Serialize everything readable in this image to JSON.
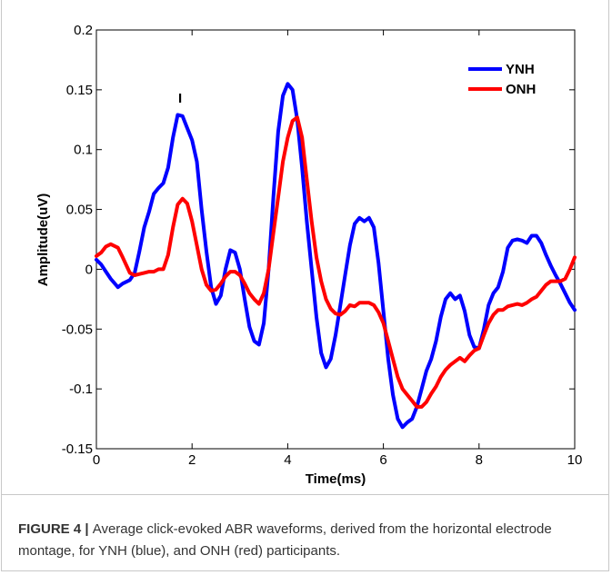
{
  "chart_data": {
    "type": "line",
    "title": "",
    "xlabel": "Time(ms)",
    "ylabel": "Amplitude(uV)",
    "xlim": [
      0,
      10
    ],
    "ylim": [
      -0.15,
      0.2
    ],
    "x_ticks": [
      0,
      2,
      4,
      6,
      8,
      10
    ],
    "x_tick_labels": [
      "0",
      "2",
      "4",
      "6",
      "8",
      "10"
    ],
    "y_ticks": [
      -0.15,
      -0.1,
      -0.05,
      0,
      0.05,
      0.1,
      0.15,
      0.2
    ],
    "y_tick_labels": [
      "-0.15",
      "-0.1",
      "-0.05",
      "0",
      "0.05",
      "0.1",
      "0.15",
      "0.2"
    ],
    "grid": false,
    "legend_position": "top-right",
    "annotations": [
      {
        "text": "I",
        "x": 1.75,
        "y": 0.143
      }
    ],
    "series": [
      {
        "name": "YNH",
        "color": "#0000ff",
        "points": [
          [
            0,
            0.008
          ],
          [
            0.1,
            0.004
          ],
          [
            0.2,
            -0.002
          ],
          [
            0.3,
            -0.008
          ],
          [
            0.45,
            -0.015
          ],
          [
            0.55,
            -0.012
          ],
          [
            0.7,
            -0.009
          ],
          [
            0.8,
            -0.003
          ],
          [
            0.9,
            0.015
          ],
          [
            1.0,
            0.035
          ],
          [
            1.1,
            0.048
          ],
          [
            1.2,
            0.063
          ],
          [
            1.3,
            0.068
          ],
          [
            1.4,
            0.072
          ],
          [
            1.5,
            0.085
          ],
          [
            1.6,
            0.11
          ],
          [
            1.7,
            0.129
          ],
          [
            1.8,
            0.128
          ],
          [
            1.9,
            0.118
          ],
          [
            2.0,
            0.108
          ],
          [
            2.1,
            0.09
          ],
          [
            2.2,
            0.05
          ],
          [
            2.3,
            0.015
          ],
          [
            2.4,
            -0.015
          ],
          [
            2.5,
            -0.029
          ],
          [
            2.6,
            -0.022
          ],
          [
            2.7,
            0.0
          ],
          [
            2.8,
            0.016
          ],
          [
            2.9,
            0.014
          ],
          [
            3.0,
            0.0
          ],
          [
            3.1,
            -0.025
          ],
          [
            3.2,
            -0.048
          ],
          [
            3.3,
            -0.06
          ],
          [
            3.4,
            -0.063
          ],
          [
            3.5,
            -0.045
          ],
          [
            3.6,
            0.0
          ],
          [
            3.7,
            0.06
          ],
          [
            3.8,
            0.115
          ],
          [
            3.9,
            0.145
          ],
          [
            4.0,
            0.155
          ],
          [
            4.1,
            0.15
          ],
          [
            4.2,
            0.125
          ],
          [
            4.3,
            0.085
          ],
          [
            4.4,
            0.04
          ],
          [
            4.5,
            0.0
          ],
          [
            4.6,
            -0.04
          ],
          [
            4.7,
            -0.07
          ],
          [
            4.8,
            -0.082
          ],
          [
            4.9,
            -0.075
          ],
          [
            5.0,
            -0.055
          ],
          [
            5.1,
            -0.03
          ],
          [
            5.2,
            -0.005
          ],
          [
            5.3,
            0.02
          ],
          [
            5.4,
            0.038
          ],
          [
            5.5,
            0.043
          ],
          [
            5.6,
            0.04
          ],
          [
            5.7,
            0.043
          ],
          [
            5.8,
            0.035
          ],
          [
            5.9,
            0.005
          ],
          [
            6.0,
            -0.035
          ],
          [
            6.1,
            -0.075
          ],
          [
            6.2,
            -0.105
          ],
          [
            6.3,
            -0.125
          ],
          [
            6.4,
            -0.132
          ],
          [
            6.5,
            -0.128
          ],
          [
            6.6,
            -0.125
          ],
          [
            6.7,
            -0.115
          ],
          [
            6.8,
            -0.1
          ],
          [
            6.9,
            -0.085
          ],
          [
            7.0,
            -0.075
          ],
          [
            7.1,
            -0.06
          ],
          [
            7.2,
            -0.04
          ],
          [
            7.3,
            -0.025
          ],
          [
            7.4,
            -0.02
          ],
          [
            7.5,
            -0.025
          ],
          [
            7.6,
            -0.022
          ],
          [
            7.7,
            -0.035
          ],
          [
            7.8,
            -0.055
          ],
          [
            7.9,
            -0.065
          ],
          [
            8.0,
            -0.066
          ],
          [
            8.1,
            -0.05
          ],
          [
            8.2,
            -0.03
          ],
          [
            8.3,
            -0.02
          ],
          [
            8.4,
            -0.015
          ],
          [
            8.5,
            -0.002
          ],
          [
            8.6,
            0.018
          ],
          [
            8.7,
            0.024
          ],
          [
            8.8,
            0.025
          ],
          [
            8.9,
            0.024
          ],
          [
            9.0,
            0.022
          ],
          [
            9.1,
            0.028
          ],
          [
            9.2,
            0.028
          ],
          [
            9.3,
            0.022
          ],
          [
            9.4,
            0.012
          ],
          [
            9.5,
            0.003
          ],
          [
            9.6,
            -0.005
          ],
          [
            9.7,
            -0.012
          ],
          [
            9.8,
            -0.02
          ],
          [
            9.9,
            -0.028
          ],
          [
            10.0,
            -0.034
          ]
        ]
      },
      {
        "name": "ONH",
        "color": "#ff0000",
        "points": [
          [
            0,
            0.011
          ],
          [
            0.1,
            0.014
          ],
          [
            0.2,
            0.019
          ],
          [
            0.3,
            0.021
          ],
          [
            0.45,
            0.018
          ],
          [
            0.55,
            0.01
          ],
          [
            0.7,
            -0.003
          ],
          [
            0.8,
            -0.005
          ],
          [
            0.9,
            -0.004
          ],
          [
            1.0,
            -0.003
          ],
          [
            1.1,
            -0.002
          ],
          [
            1.2,
            -0.002
          ],
          [
            1.3,
            0.0
          ],
          [
            1.4,
            0.0
          ],
          [
            1.5,
            0.012
          ],
          [
            1.6,
            0.035
          ],
          [
            1.7,
            0.054
          ],
          [
            1.8,
            0.059
          ],
          [
            1.9,
            0.055
          ],
          [
            2.0,
            0.04
          ],
          [
            2.1,
            0.02
          ],
          [
            2.2,
            0.0
          ],
          [
            2.3,
            -0.013
          ],
          [
            2.4,
            -0.018
          ],
          [
            2.5,
            -0.017
          ],
          [
            2.6,
            -0.012
          ],
          [
            2.7,
            -0.006
          ],
          [
            2.8,
            -0.002
          ],
          [
            2.9,
            -0.002
          ],
          [
            3.0,
            -0.005
          ],
          [
            3.1,
            -0.012
          ],
          [
            3.2,
            -0.02
          ],
          [
            3.3,
            -0.025
          ],
          [
            3.4,
            -0.029
          ],
          [
            3.5,
            -0.02
          ],
          [
            3.6,
            0.0
          ],
          [
            3.7,
            0.03
          ],
          [
            3.8,
            0.06
          ],
          [
            3.9,
            0.09
          ],
          [
            4.0,
            0.11
          ],
          [
            4.1,
            0.124
          ],
          [
            4.2,
            0.127
          ],
          [
            4.3,
            0.11
          ],
          [
            4.4,
            0.075
          ],
          [
            4.5,
            0.04
          ],
          [
            4.6,
            0.01
          ],
          [
            4.7,
            -0.01
          ],
          [
            4.8,
            -0.025
          ],
          [
            4.9,
            -0.033
          ],
          [
            5.0,
            -0.037
          ],
          [
            5.1,
            -0.038
          ],
          [
            5.2,
            -0.035
          ],
          [
            5.3,
            -0.03
          ],
          [
            5.4,
            -0.031
          ],
          [
            5.5,
            -0.028
          ],
          [
            5.6,
            -0.028
          ],
          [
            5.7,
            -0.028
          ],
          [
            5.8,
            -0.03
          ],
          [
            5.9,
            -0.036
          ],
          [
            6.0,
            -0.045
          ],
          [
            6.1,
            -0.06
          ],
          [
            6.2,
            -0.075
          ],
          [
            6.3,
            -0.09
          ],
          [
            6.4,
            -0.1
          ],
          [
            6.5,
            -0.105
          ],
          [
            6.6,
            -0.11
          ],
          [
            6.7,
            -0.115
          ],
          [
            6.8,
            -0.115
          ],
          [
            6.9,
            -0.111
          ],
          [
            7.0,
            -0.104
          ],
          [
            7.1,
            -0.098
          ],
          [
            7.2,
            -0.09
          ],
          [
            7.3,
            -0.084
          ],
          [
            7.4,
            -0.08
          ],
          [
            7.5,
            -0.077
          ],
          [
            7.6,
            -0.074
          ],
          [
            7.7,
            -0.077
          ],
          [
            7.8,
            -0.072
          ],
          [
            7.9,
            -0.068
          ],
          [
            8.0,
            -0.066
          ],
          [
            8.1,
            -0.055
          ],
          [
            8.2,
            -0.045
          ],
          [
            8.3,
            -0.038
          ],
          [
            8.4,
            -0.034
          ],
          [
            8.5,
            -0.034
          ],
          [
            8.6,
            -0.031
          ],
          [
            8.7,
            -0.03
          ],
          [
            8.8,
            -0.029
          ],
          [
            8.9,
            -0.03
          ],
          [
            9.0,
            -0.028
          ],
          [
            9.1,
            -0.025
          ],
          [
            9.2,
            -0.023
          ],
          [
            9.3,
            -0.018
          ],
          [
            9.4,
            -0.013
          ],
          [
            9.5,
            -0.01
          ],
          [
            9.6,
            -0.01
          ],
          [
            9.7,
            -0.01
          ],
          [
            9.8,
            -0.008
          ],
          [
            9.9,
            0.0
          ],
          [
            10.0,
            0.01
          ]
        ]
      }
    ]
  },
  "caption": {
    "lead": "FIGURE 4",
    "separator": " | ",
    "text": "Average click-evoked ABR waveforms, derived from the horizontal electrode montage, for YNH (blue), and ONH (red) participants."
  }
}
